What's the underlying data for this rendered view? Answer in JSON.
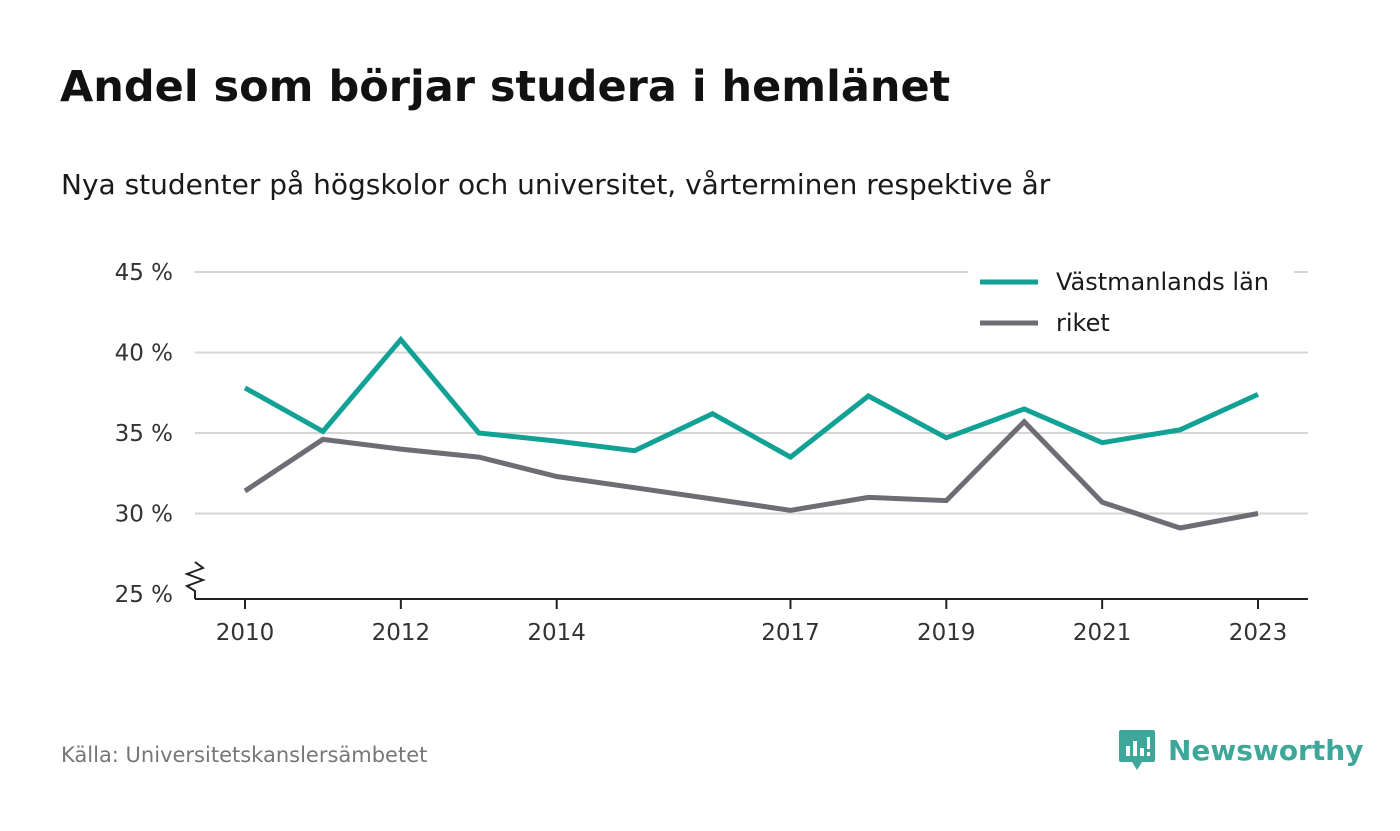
{
  "chart_data": {
    "type": "line",
    "title": "Andel som börjar studera i hemlänet",
    "subtitle": "Nya studenter på högskolor och universitet, vårterminen respektive år",
    "x": [
      2010,
      2011,
      2012,
      2013,
      2014,
      2015,
      2016,
      2017,
      2018,
      2019,
      2020,
      2021,
      2022,
      2023
    ],
    "x_ticks": [
      2010,
      2012,
      2014,
      2017,
      2019,
      2021,
      2023
    ],
    "y_ticks": [
      25,
      30,
      35,
      40,
      45
    ],
    "y_tick_labels": [
      "25 %",
      "30 %",
      "35 %",
      "40 %",
      "45 %"
    ],
    "ylim": [
      25,
      45
    ],
    "axis_break": true,
    "grid": "horizontal",
    "legend": "top-right",
    "series": [
      {
        "name": "Västmanlands län",
        "color": "#12a195",
        "values": [
          37.8,
          35.1,
          40.8,
          35.0,
          34.5,
          33.9,
          36.2,
          33.5,
          37.3,
          34.7,
          36.5,
          34.4,
          35.2,
          37.4
        ]
      },
      {
        "name": "riket",
        "color": "#6e6c75",
        "values": [
          31.4,
          34.6,
          34.0,
          33.5,
          32.3,
          31.6,
          30.9,
          30.2,
          31.0,
          30.8,
          35.7,
          30.7,
          29.1,
          30.0
        ]
      }
    ]
  },
  "footer": {
    "source": "Källa: Universitetskanslersämbetet",
    "brand": "Newsworthy",
    "brand_icon": "newsworthy-logo-icon",
    "brand_color": "#3fa69a"
  }
}
